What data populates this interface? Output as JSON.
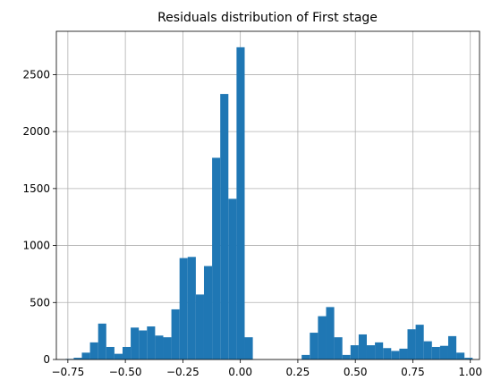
{
  "colors": {
    "bar": "#1f77b4",
    "grid": "#b0b0b0",
    "axis": "#000000",
    "background": "#ffffff"
  },
  "chart_data": {
    "type": "bar",
    "title": "Residuals distribution of First stage",
    "xlabel": "",
    "ylabel": "",
    "grid": true,
    "xlim": [
      -0.8,
      1.04
    ],
    "ylim": [
      0,
      2880
    ],
    "xticks": [
      -0.75,
      -0.5,
      -0.25,
      0.0,
      0.25,
      0.5,
      0.75,
      1.0
    ],
    "xtick_labels": [
      "−0.75",
      "−0.50",
      "−0.25",
      "0.00",
      "0.25",
      "0.50",
      "0.75",
      "1.00"
    ],
    "yticks": [
      0,
      500,
      1000,
      1500,
      2000,
      2500
    ],
    "ytick_labels": [
      "0",
      "500",
      "1000",
      "1500",
      "2000",
      "2500"
    ],
    "bin_start": -0.76,
    "bin_width": 0.0354,
    "values": [
      5,
      15,
      60,
      150,
      315,
      110,
      50,
      110,
      280,
      255,
      290,
      210,
      195,
      440,
      890,
      900,
      570,
      820,
      1770,
      2330,
      1410,
      2740,
      195,
      0,
      0,
      0,
      0,
      0,
      0,
      40,
      235,
      380,
      460,
      195,
      40,
      125,
      220,
      125,
      150,
      100,
      75,
      95,
      265,
      305,
      160,
      110,
      120,
      205,
      60,
      15
    ]
  }
}
